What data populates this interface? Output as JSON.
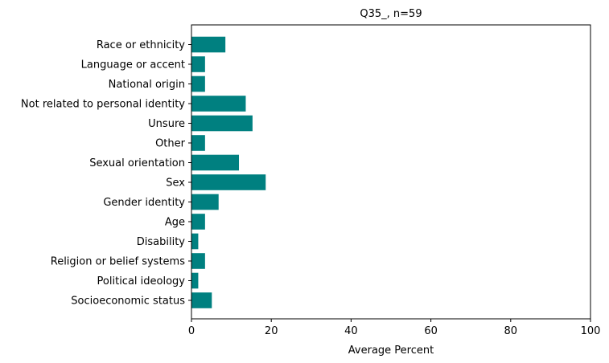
{
  "chart_data": {
    "type": "bar",
    "orientation": "horizontal",
    "title": "Q35_, n=59",
    "xlabel": "Average Percent",
    "ylabel": "",
    "xlim": [
      0,
      100
    ],
    "xticks": [
      "0",
      "20",
      "40",
      "60",
      "80",
      "100"
    ],
    "categories": [
      "Race or ethnicity",
      "Language or accent",
      "National origin",
      "Not related to personal identity",
      "Unsure",
      "Other",
      "Sexual orientation",
      "Sex",
      "Gender identity",
      "Age",
      "Disability",
      "Religion or belief systems",
      "Political ideology",
      "Socioeconomic status"
    ],
    "values": [
      8.5,
      3.4,
      3.4,
      13.6,
      15.3,
      3.4,
      11.9,
      18.6,
      6.8,
      3.4,
      1.7,
      3.4,
      1.7,
      5.1
    ],
    "bar_color": "#008080",
    "grid": false
  }
}
